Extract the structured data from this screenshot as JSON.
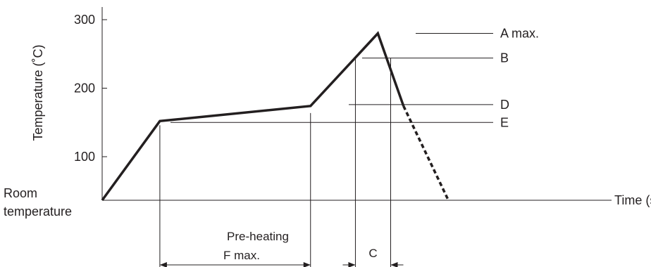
{
  "chart_data": {
    "type": "line",
    "title": "",
    "ylabel": "Temperature (˚C)",
    "xlabel": "Time (s)",
    "y_ticks": [
      100,
      200,
      300
    ],
    "ylim": [
      35,
      310
    ],
    "room_temperature_label": "Room\ntemperature",
    "series": [
      {
        "values": [
          {
            "t": 0,
            "temp": 38
          },
          {
            "t": 1.8,
            "temp": 152
          },
          {
            "t": 6.5,
            "temp": 174
          },
          {
            "t": 8.6,
            "temp": 280
          },
          {
            "t": 9.4,
            "temp": 174
          }
        ],
        "cooling_continuation": [
          {
            "t": 9.4,
            "temp": 174
          },
          {
            "t": 10.8,
            "temp": 38
          }
        ]
      }
    ],
    "levels": [
      {
        "name": "A max.",
        "temp": 280
      },
      {
        "name": "B",
        "temp": 244
      },
      {
        "name": "D",
        "temp": 176
      },
      {
        "name": "E",
        "temp": 150
      }
    ],
    "spans": [
      {
        "label": "Pre-heating\nF max.",
        "from": 1.8,
        "to": 6.5
      },
      {
        "label": "C",
        "from": 7.9,
        "to": 9.0
      }
    ]
  }
}
